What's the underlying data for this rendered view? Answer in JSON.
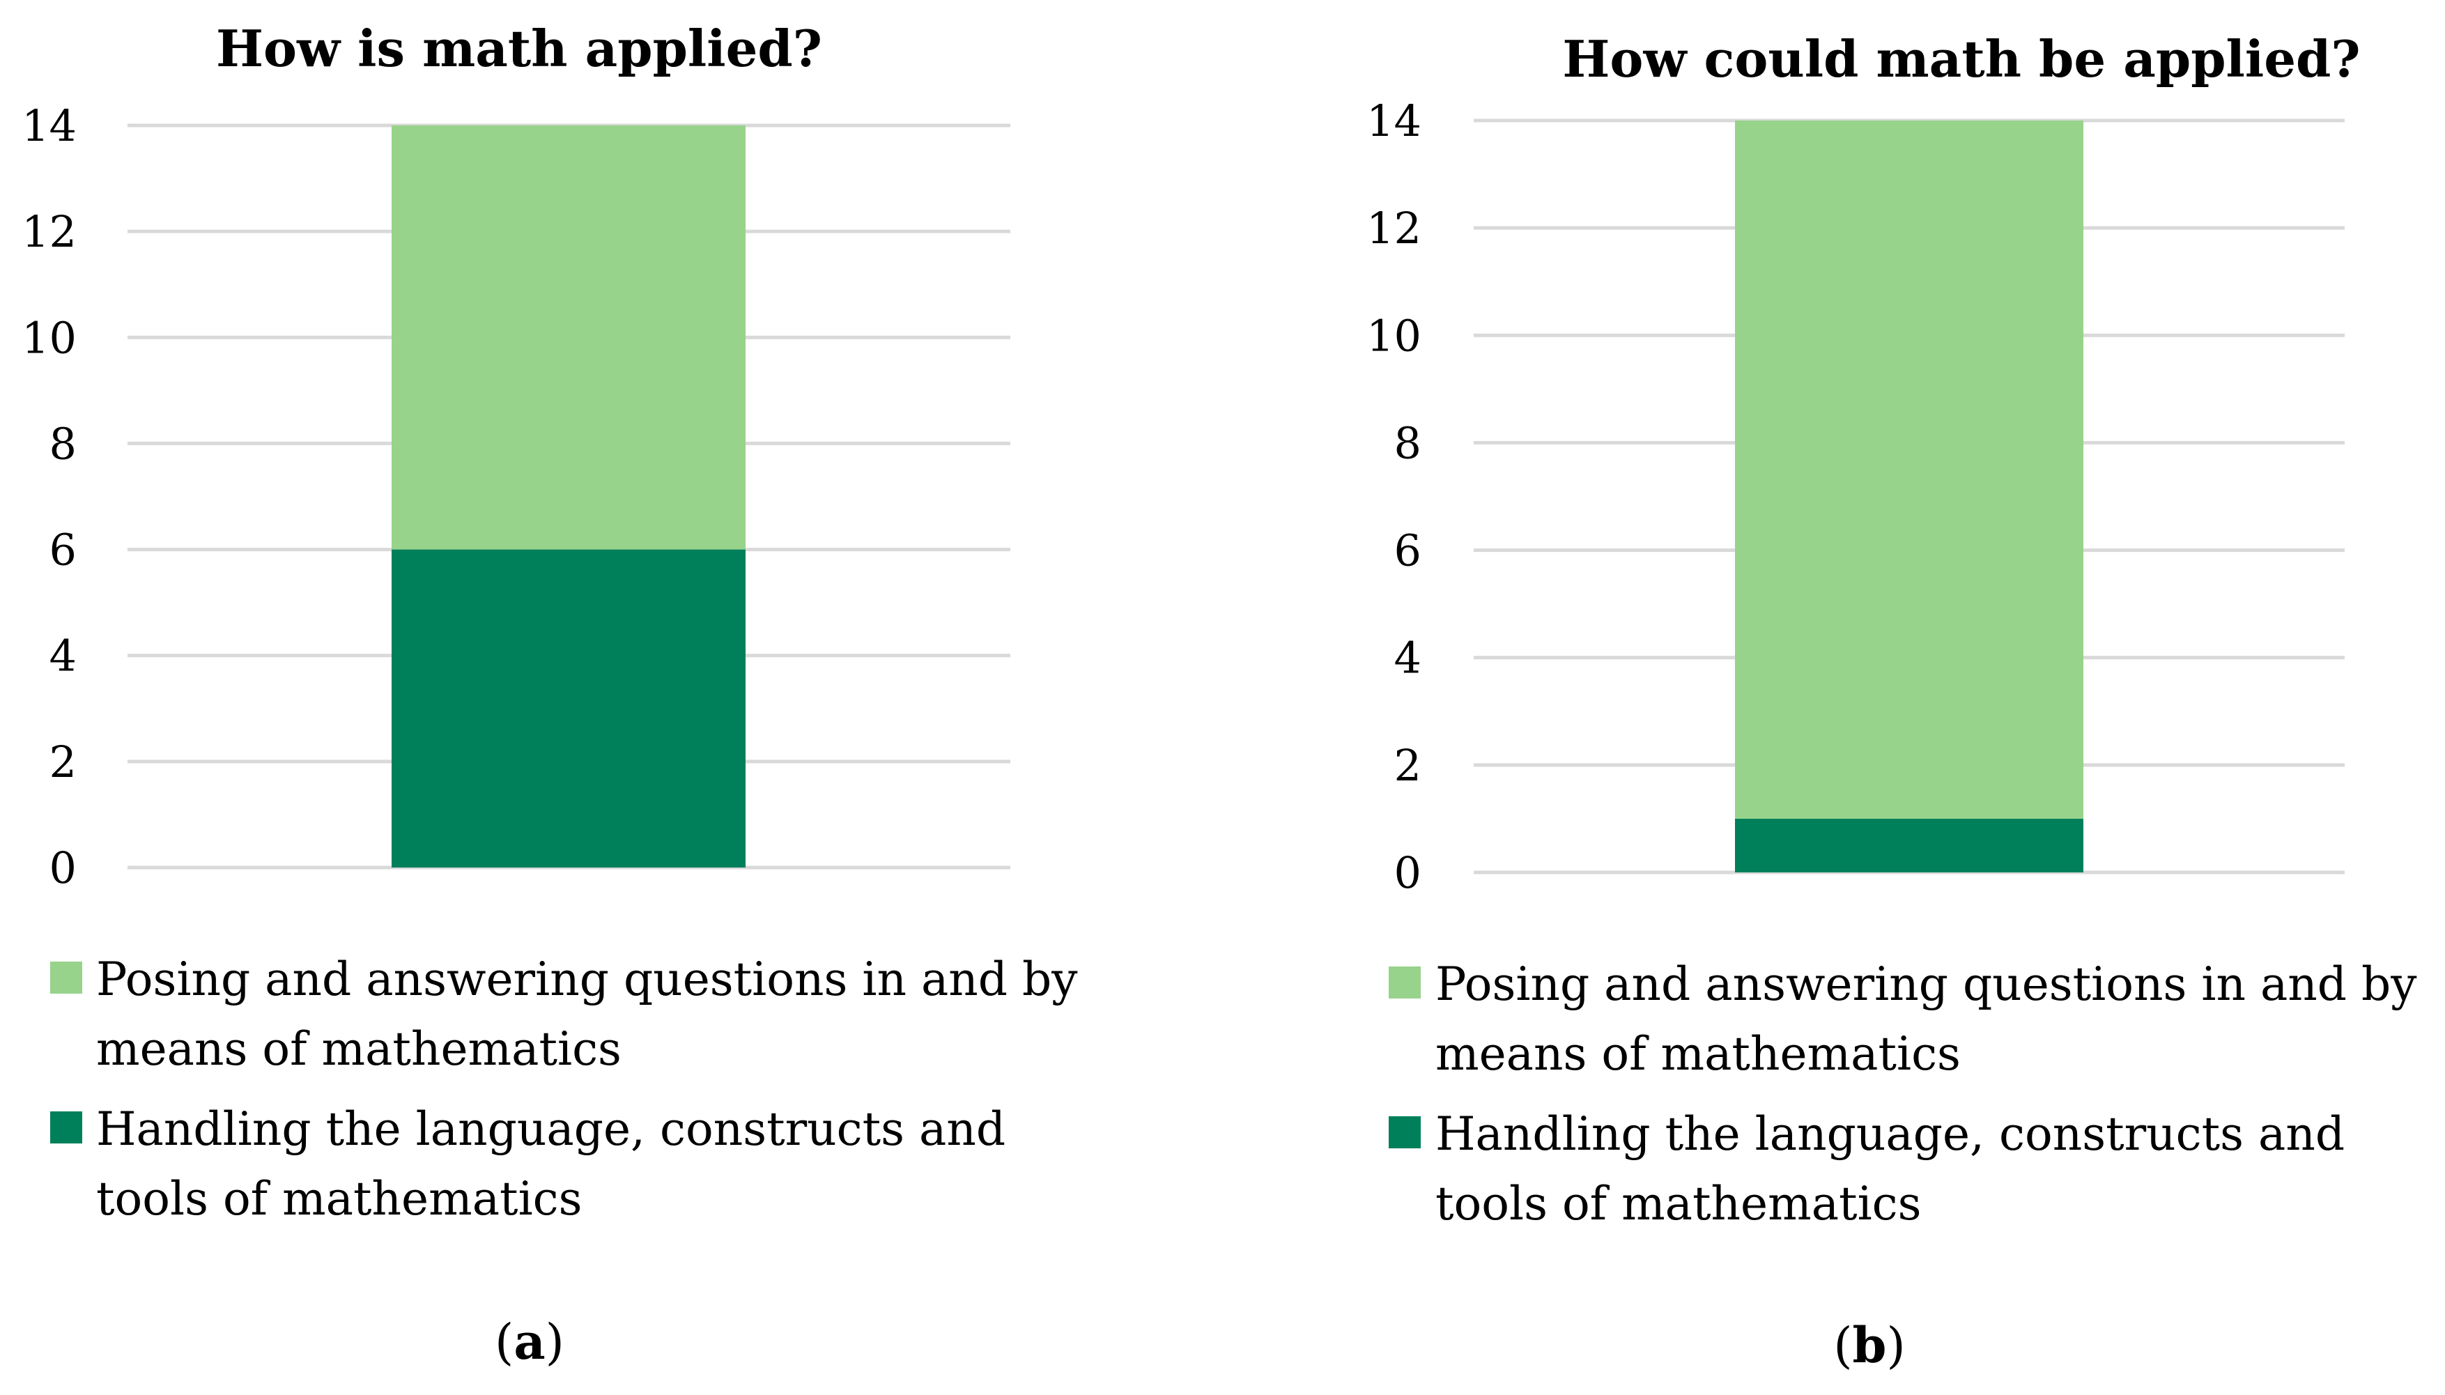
{
  "chart_data": [
    {
      "type": "bar",
      "stacked": true,
      "title": "How is math applied?",
      "panel_label": "a",
      "categories": [
        ""
      ],
      "series": [
        {
          "name": "Handling the language, constructs and tools of mathematics",
          "values": [
            6
          ],
          "color": "#00805a"
        },
        {
          "name": "Posing and answering questions in and by means of mathematics",
          "values": [
            8
          ],
          "color": "#97d38b"
        }
      ],
      "ylim": [
        0,
        14
      ],
      "yticks": [
        "0",
        "2",
        "4",
        "6",
        "8",
        "10",
        "12",
        "14"
      ],
      "grid": true,
      "legend_position": "bottom",
      "legend": [
        {
          "lines": [
            " Posing and answering questions in and by",
            "means of mathematics"
          ],
          "color": "#97d38b"
        },
        {
          "lines": [
            "Handling the language, constructs and",
            "tools of mathematics"
          ],
          "color": "#00805a"
        }
      ]
    },
    {
      "type": "bar",
      "stacked": true,
      "title": "How could math be applied?",
      "panel_label": "b",
      "categories": [
        ""
      ],
      "series": [
        {
          "name": "Handling the language, constructs and tools of mathematics",
          "values": [
            1
          ],
          "color": "#00805a"
        },
        {
          "name": "Posing and answering questions in and by means of mathematics",
          "values": [
            13
          ],
          "color": "#97d38b"
        }
      ],
      "ylim": [
        0,
        14
      ],
      "yticks": [
        "0",
        "2",
        "4",
        "6",
        "8",
        "10",
        "12",
        "14"
      ],
      "grid": true,
      "legend_position": "bottom",
      "legend": [
        {
          "lines": [
            " Posing and answering questions in and by",
            "means of mathematics"
          ],
          "color": "#97d38b"
        },
        {
          "lines": [
            "Handling the language, constructs and",
            "tools of mathematics"
          ],
          "color": "#00805a"
        }
      ]
    }
  ]
}
